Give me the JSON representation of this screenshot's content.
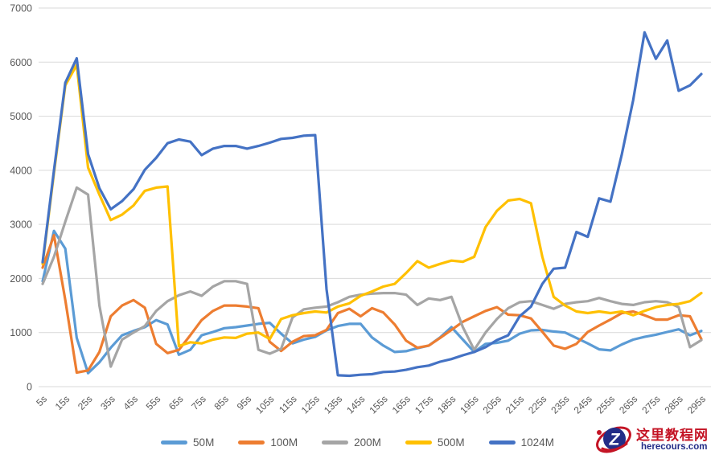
{
  "chart_data": {
    "type": "line",
    "title": "",
    "xlabel": "",
    "ylabel": "",
    "x_unit": "seconds",
    "grid": true,
    "legend_position": "bottom",
    "ylim": [
      0,
      7000
    ],
    "y_ticks": [
      0,
      1000,
      2000,
      3000,
      4000,
      5000,
      6000,
      7000
    ],
    "x": [
      5,
      10,
      15,
      20,
      25,
      30,
      35,
      40,
      45,
      50,
      55,
      60,
      65,
      70,
      75,
      80,
      85,
      90,
      95,
      100,
      105,
      110,
      115,
      120,
      125,
      130,
      135,
      140,
      145,
      150,
      155,
      160,
      165,
      170,
      175,
      180,
      185,
      190,
      195,
      200,
      205,
      210,
      215,
      220,
      225,
      230,
      235,
      240,
      245,
      250,
      255,
      260,
      265,
      270,
      275,
      280,
      285,
      290,
      295
    ],
    "x_tick_labels": [
      "5s",
      "15s",
      "25s",
      "35s",
      "45s",
      "55s",
      "65s",
      "75s",
      "85s",
      "95s",
      "105s",
      "115s",
      "125s",
      "135s",
      "145s",
      "155s",
      "165s",
      "175s",
      "185s",
      "195s",
      "205s",
      "215s",
      "225s",
      "235s",
      "245s",
      "255s",
      "265s",
      "275s",
      "285s",
      "295s"
    ],
    "series": [
      {
        "name": "50M",
        "color": "#5B9BD5",
        "values": [
          1950,
          2880,
          2550,
          900,
          250,
          450,
          720,
          950,
          1030,
          1100,
          1230,
          1150,
          590,
          680,
          950,
          1010,
          1080,
          1100,
          1130,
          1160,
          1180,
          980,
          800,
          870,
          920,
          1040,
          1120,
          1160,
          1160,
          910,
          760,
          640,
          655,
          710,
          760,
          910,
          1100,
          870,
          640,
          790,
          810,
          850,
          980,
          1040,
          1050,
          1020,
          1000,
          900,
          800,
          690,
          670,
          780,
          870,
          920,
          960,
          1010,
          1060,
          950,
          1030
        ]
      },
      {
        "name": "100M",
        "color": "#ED7D31",
        "values": [
          2200,
          2800,
          1600,
          260,
          300,
          640,
          1300,
          1500,
          1600,
          1460,
          790,
          620,
          680,
          950,
          1230,
          1400,
          1500,
          1500,
          1480,
          1450,
          830,
          660,
          830,
          935,
          950,
          1050,
          1360,
          1440,
          1300,
          1450,
          1370,
          1150,
          850,
          720,
          760,
          900,
          1050,
          1200,
          1300,
          1400,
          1470,
          1330,
          1320,
          1260,
          1015,
          760,
          700,
          790,
          1010,
          1130,
          1240,
          1360,
          1390,
          1320,
          1240,
          1240,
          1320,
          1300,
          880
        ]
      },
      {
        "name": "200M",
        "color": "#A5A5A5",
        "values": [
          1900,
          2400,
          3050,
          3680,
          3550,
          1500,
          370,
          870,
          1000,
          1120,
          1400,
          1580,
          1690,
          1760,
          1680,
          1850,
          1950,
          1950,
          1900,
          680,
          610,
          700,
          1280,
          1430,
          1460,
          1480,
          1560,
          1660,
          1700,
          1720,
          1730,
          1730,
          1700,
          1510,
          1630,
          1600,
          1660,
          1100,
          680,
          1000,
          1250,
          1450,
          1560,
          1580,
          1510,
          1440,
          1530,
          1560,
          1580,
          1640,
          1580,
          1530,
          1510,
          1560,
          1580,
          1560,
          1470,
          730,
          860
        ]
      },
      {
        "name": "500M",
        "color": "#FFC000",
        "values": [
          2270,
          3950,
          5570,
          5950,
          4050,
          3550,
          3080,
          3180,
          3350,
          3620,
          3680,
          3700,
          750,
          820,
          800,
          870,
          910,
          900,
          980,
          1000,
          880,
          1250,
          1320,
          1360,
          1390,
          1370,
          1480,
          1540,
          1680,
          1760,
          1850,
          1900,
          2100,
          2320,
          2200,
          2270,
          2330,
          2310,
          2400,
          2950,
          3250,
          3440,
          3470,
          3390,
          2400,
          1660,
          1500,
          1390,
          1360,
          1390,
          1360,
          1390,
          1320,
          1400,
          1470,
          1510,
          1530,
          1580,
          1730
        ]
      },
      {
        "name": "1024M",
        "color": "#4472C4",
        "values": [
          2300,
          4000,
          5620,
          6070,
          4300,
          3670,
          3280,
          3430,
          3650,
          4010,
          4230,
          4500,
          4570,
          4530,
          4280,
          4400,
          4450,
          4450,
          4400,
          4450,
          4510,
          4580,
          4600,
          4640,
          4650,
          1800,
          210,
          200,
          220,
          230,
          270,
          280,
          310,
          360,
          390,
          460,
          510,
          580,
          640,
          730,
          860,
          950,
          1300,
          1480,
          1900,
          2180,
          2200,
          2860,
          2770,
          3480,
          3420,
          4300,
          5300,
          6550,
          6060,
          6400,
          5470,
          5570,
          5780
        ]
      }
    ]
  },
  "style": {
    "gridline_color": "#D9D9D9",
    "axis_label_color": "#595959",
    "background": "#FFFFFF"
  },
  "watermark": {
    "site_name": "这里教程网",
    "site_domain": "herecours.com",
    "logo_letter": "Z",
    "accent_red": "#C41425",
    "navy": "#232D87"
  }
}
